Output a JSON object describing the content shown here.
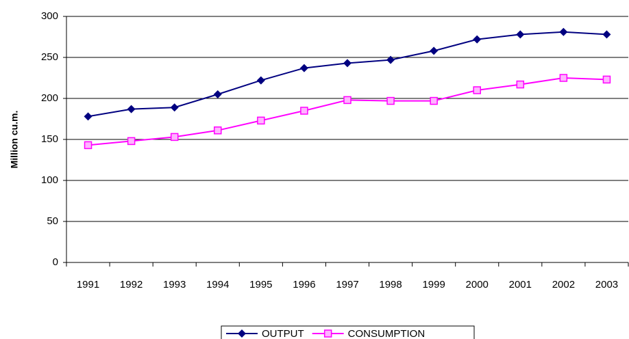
{
  "chart_data": {
    "type": "line",
    "ylabel": "Million cu.m.",
    "categories": [
      "1991",
      "1992",
      "1993",
      "1994",
      "1995",
      "1996",
      "1997",
      "1998",
      "1999",
      "2000",
      "2001",
      "2002",
      "2003"
    ],
    "series": [
      {
        "name": "OUTPUT",
        "color": "#000080",
        "marker": "diamond",
        "values": [
          178,
          187,
          189,
          205,
          222,
          237,
          243,
          247,
          258,
          272,
          278,
          281,
          278
        ]
      },
      {
        "name": "CONSUMPTION",
        "color": "#ff00ff",
        "marker": "square",
        "values": [
          143,
          148,
          153,
          161,
          173,
          185,
          198,
          197,
          197,
          210,
          217,
          225,
          223
        ]
      }
    ],
    "ylim": [
      0,
      300
    ],
    "yticks": [
      0,
      50,
      100,
      150,
      200,
      250,
      300
    ],
    "grid": true,
    "legend": "bottom"
  }
}
